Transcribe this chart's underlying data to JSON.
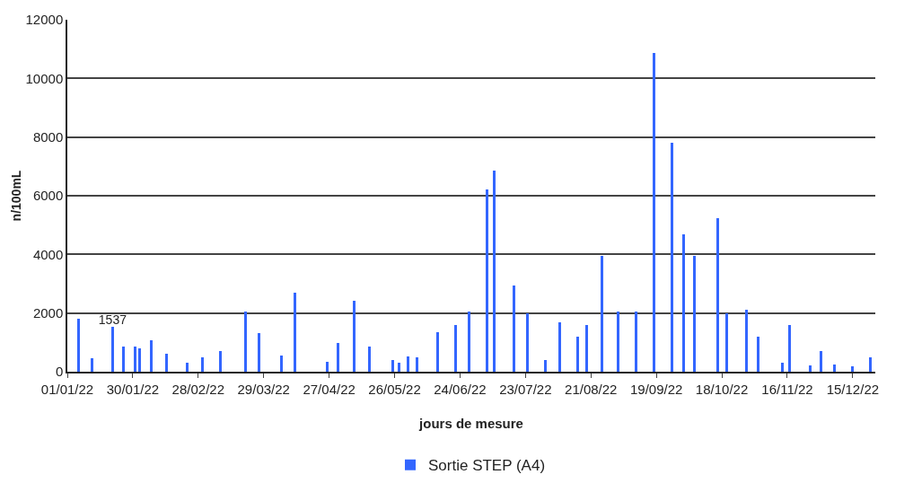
{
  "chart_data": {
    "type": "bar",
    "xlabel": "jours de mesure",
    "ylabel": "n/100mL",
    "x": [
      "2022-01-06",
      "2022-01-12",
      "2022-01-21",
      "2022-01-26",
      "2022-01-31",
      "2022-02-02",
      "2022-02-07",
      "2022-02-14",
      "2022-02-23",
      "2022-03-02",
      "2022-03-10",
      "2022-03-21",
      "2022-03-27",
      "2022-04-06",
      "2022-04-12",
      "2022-04-26",
      "2022-05-01",
      "2022-05-08",
      "2022-05-15",
      "2022-05-25",
      "2022-05-28",
      "2022-06-01",
      "2022-06-05",
      "2022-06-14",
      "2022-06-22",
      "2022-06-28",
      "2022-07-06",
      "2022-07-09",
      "2022-07-18",
      "2022-07-24",
      "2022-08-01",
      "2022-08-07",
      "2022-08-15",
      "2022-08-19",
      "2022-08-26",
      "2022-09-02",
      "2022-09-10",
      "2022-09-18",
      "2022-09-26",
      "2022-10-01",
      "2022-10-06",
      "2022-10-16",
      "2022-10-20",
      "2022-10-29",
      "2022-11-03",
      "2022-11-14",
      "2022-11-17",
      "2022-11-26",
      "2022-12-01",
      "2022-12-07",
      "2022-12-15",
      "2022-12-23"
    ],
    "series": [
      {
        "name": "Sortie STEP (A4)",
        "color": "#3366ff",
        "values": [
          1810,
          450,
          1537,
          860,
          860,
          800,
          1070,
          620,
          300,
          500,
          710,
          2050,
          1310,
          560,
          2700,
          330,
          980,
          2410,
          860,
          390,
          300,
          530,
          500,
          1340,
          1600,
          2050,
          6200,
          6850,
          2940,
          2000,
          390,
          1690,
          1190,
          1600,
          3950,
          2050,
          2050,
          10870,
          7810,
          4690,
          3950,
          5230,
          1990,
          2110,
          1190,
          300,
          1600,
          210,
          710,
          240,
          180,
          500
        ],
        "value_labels": [
          null,
          null,
          "1537",
          null,
          null,
          null,
          null,
          null,
          null,
          null,
          null,
          null,
          null,
          null,
          null,
          null,
          null,
          null,
          null,
          null,
          null,
          null,
          null,
          null,
          null,
          null,
          null,
          null,
          null,
          null,
          null,
          null,
          null,
          null,
          null,
          null,
          null,
          null,
          null,
          null,
          null,
          null,
          null,
          null,
          null,
          null,
          null,
          null,
          null,
          null,
          null,
          null
        ]
      }
    ],
    "xlim": [
      "2022-01-01",
      "2022-12-25"
    ],
    "xticks": [
      {
        "value": "2022-01-01",
        "label": "01/01/22"
      },
      {
        "value": "2022-01-30",
        "label": "30/01/22"
      },
      {
        "value": "2022-02-28",
        "label": "28/02/22"
      },
      {
        "value": "2022-03-29",
        "label": "29/03/22"
      },
      {
        "value": "2022-04-27",
        "label": "27/04/22"
      },
      {
        "value": "2022-05-26",
        "label": "26/05/22"
      },
      {
        "value": "2022-06-24",
        "label": "24/06/22"
      },
      {
        "value": "2022-07-23",
        "label": "23/07/22"
      },
      {
        "value": "2022-08-21",
        "label": "21/08/22"
      },
      {
        "value": "2022-09-19",
        "label": "19/09/22"
      },
      {
        "value": "2022-10-18",
        "label": "18/10/22"
      },
      {
        "value": "2022-11-16",
        "label": "16/11/22"
      },
      {
        "value": "2022-12-15",
        "label": "15/12/22"
      }
    ],
    "ylim": [
      0,
      12000
    ],
    "yticks": [
      0,
      2000,
      4000,
      6000,
      8000,
      10000,
      12000
    ],
    "grid": "y",
    "legend": "bottom"
  }
}
